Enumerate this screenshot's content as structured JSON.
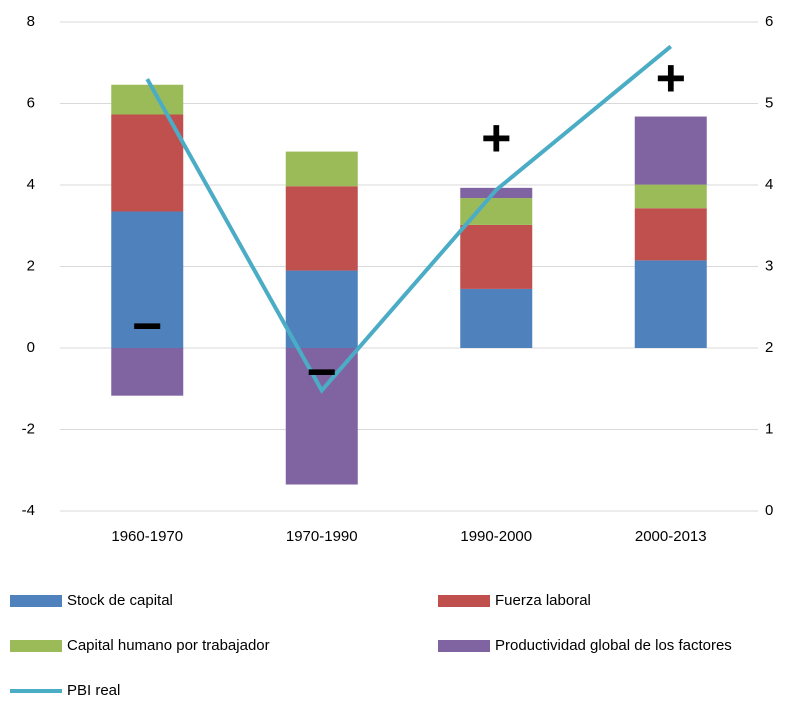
{
  "chart_data": {
    "type": "stacked_bar_line",
    "categories": [
      "1960-1970",
      "1970-1990",
      "1990-2000",
      "2000-2013"
    ],
    "series": [
      {
        "name": "Stock de capital",
        "color": "#4f81bd",
        "values": [
          3.35,
          1.9,
          1.45,
          2.15
        ]
      },
      {
        "name": "Fuerza laboral",
        "color": "#c0504d",
        "values": [
          2.38,
          2.07,
          1.57,
          1.28
        ]
      },
      {
        "name": "Capital humano por trabajador",
        "color": "#9bbb59",
        "values": [
          0.73,
          0.85,
          0.66,
          0.58
        ]
      },
      {
        "name": "Productividad global de los factores",
        "color": "#8064a2",
        "values": [
          -1.17,
          -3.35,
          0.25,
          1.67
        ]
      },
      {
        "name": "PBI real",
        "color": "#4bacc6",
        "type": "line",
        "axis": "y2",
        "values": [
          5.3,
          1.48,
          3.94,
          5.7
        ]
      }
    ],
    "annotations": [
      "−",
      "−",
      "+",
      "+"
    ],
    "ylim": [
      -4,
      8
    ],
    "yticks": [
      -4,
      -2,
      0,
      2,
      4,
      6,
      8
    ],
    "y2lim": [
      0,
      6
    ],
    "y2ticks": [
      0,
      1,
      2,
      3,
      4,
      5,
      6
    ],
    "grid": true,
    "legend": "bottom"
  }
}
